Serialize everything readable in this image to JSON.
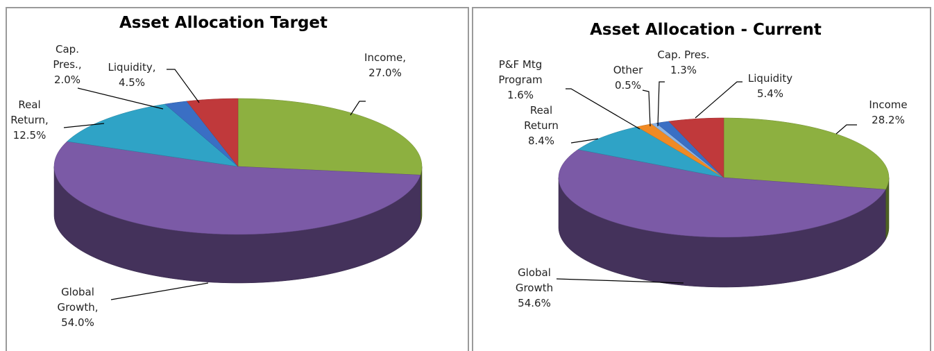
{
  "chart_data": [
    {
      "type": "pie3d",
      "title": "Asset Allocation Target",
      "categories": [
        "Income,",
        "Global Growth,",
        "Real Return,",
        "Cap. Pres.,",
        "Liquidity,"
      ],
      "values": [
        27.0,
        54.0,
        12.5,
        2.0,
        4.5
      ],
      "value_labels": [
        "27.0%",
        "54.0%",
        "12.5%",
        "2.0%",
        "4.5%"
      ],
      "colors": [
        "#8db040",
        "#7b5aa6",
        "#2fa3c6",
        "#3a6fc4",
        "#c0393b"
      ]
    },
    {
      "type": "pie3d",
      "title": "Asset Allocation - Current",
      "categories": [
        "Income",
        "Global Growth",
        "Real Return",
        "P&F Mtg Program",
        "Other",
        "Cap. Pres.",
        "Liquidity"
      ],
      "values": [
        28.2,
        54.6,
        8.4,
        1.6,
        0.5,
        1.3,
        5.4
      ],
      "value_labels": [
        "28.2%",
        "54.6%",
        "8.4%",
        "1.6%",
        "0.5%",
        "1.3%",
        "5.4%"
      ],
      "colors": [
        "#8db040",
        "#7b5aa6",
        "#2fa3c6",
        "#f08a24",
        "#8eb4e3",
        "#3a6fc4",
        "#c0393b"
      ]
    }
  ]
}
